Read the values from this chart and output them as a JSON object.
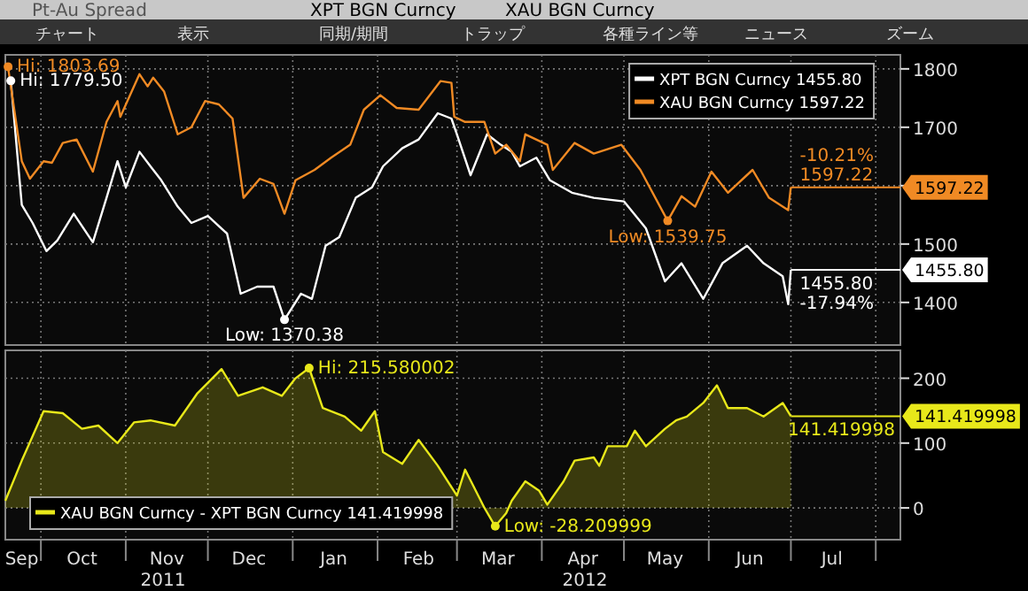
{
  "chart_data": [
    {
      "type": "line",
      "title": "Pt-Au Spread",
      "legend": "top right",
      "grid": true,
      "tick_labels": "y",
      "xlim": [
        "2011-09-18",
        "2012-08-10"
      ],
      "ylim": [
        1327,
        1824
      ],
      "xticks": [
        {
          "value": "2011-10-01",
          "label": null
        },
        {
          "value": "2011-11-01",
          "label": null
        },
        {
          "value": "2011-12-01",
          "label": null
        },
        {
          "value": "2012-01-01",
          "label": null
        },
        {
          "value": "2012-02-01",
          "label": null
        },
        {
          "value": "2012-03-01",
          "label": null
        },
        {
          "value": "2012-04-01",
          "label": null
        },
        {
          "value": "2012-05-01",
          "label": null
        },
        {
          "value": "2012-06-01",
          "label": null
        },
        {
          "value": "2012-07-01",
          "label": null
        },
        {
          "value": "2012-08-01",
          "label": null
        }
      ],
      "yticks": [
        1400,
        1500,
        {
          "value": 1600,
          "label": null
        },
        1700,
        1800
      ],
      "series": [
        {
          "name": "XPT BGN Curncy 1455.80",
          "color": "#ffffff",
          "x": [
            "2011-09-20",
            "2011-09-24",
            "2011-09-28",
            "2011-10-03",
            "2011-10-07",
            "2011-10-13",
            "2011-10-20",
            "2011-10-25",
            "2011-10-29",
            "2011-11-01",
            "2011-11-06",
            "2011-11-10",
            "2011-11-14",
            "2011-11-20",
            "2011-11-25",
            "2011-12-01",
            "2011-12-08",
            "2011-12-13",
            "2011-12-19",
            "2011-12-25",
            "2011-12-29",
            "2012-01-04",
            "2012-01-08",
            "2012-01-13",
            "2012-01-18",
            "2012-01-24",
            "2012-01-30",
            "2012-02-03",
            "2012-02-10",
            "2012-02-16",
            "2012-02-23",
            "2012-02-28",
            "2012-03-01",
            "2012-03-06",
            "2012-03-12",
            "2012-03-17",
            "2012-03-21",
            "2012-03-24",
            "2012-03-30",
            "2012-04-04",
            "2012-04-12",
            "2012-04-20",
            "2012-05-01",
            "2012-05-09",
            "2012-05-16",
            "2012-05-22",
            "2012-05-30",
            "2012-06-06",
            "2012-06-15",
            "2012-06-21",
            "2012-06-28",
            "2012-06-30",
            "2012-07-01"
          ],
          "values": [
            1779.5,
            1567,
            1536,
            1488,
            1506,
            1552,
            1503,
            1579,
            1642,
            1597,
            1658,
            1633,
            1609,
            1564,
            1536,
            1548,
            1518,
            1415,
            1427,
            1427,
            1370.38,
            1415,
            1406,
            1497,
            1512,
            1579,
            1597,
            1633,
            1664,
            1679,
            1724,
            1715,
            1688,
            1618,
            1688,
            1670,
            1658,
            1633,
            1648,
            1609,
            1588,
            1579,
            1573,
            1527,
            1436,
            1467,
            1406,
            1467,
            1497,
            1467,
            1445,
            1397,
            1455.8
          ]
        },
        {
          "name": "XAU BGN Curncy 1597.22",
          "color": "#f08a24",
          "x": [
            "2011-09-19",
            "2011-09-24",
            "2011-09-27",
            "2011-10-02",
            "2011-10-05",
            "2011-10-09",
            "2011-10-14",
            "2011-10-20",
            "2011-10-25",
            "2011-10-29",
            "2011-10-30",
            "2011-11-06",
            "2011-11-09",
            "2011-11-11",
            "2011-11-15",
            "2011-11-20",
            "2011-11-25",
            "2011-11-30",
            "2011-12-05",
            "2011-12-10",
            "2011-12-14",
            "2011-12-20",
            "2011-12-25",
            "2011-12-29",
            "2012-01-02",
            "2012-01-09",
            "2012-01-15",
            "2012-01-22",
            "2012-01-27",
            "2012-02-02",
            "2012-02-08",
            "2012-02-16",
            "2012-02-24",
            "2012-02-28",
            "2012-02-29",
            "2012-03-04",
            "2012-03-11",
            "2012-03-15",
            "2012-03-19",
            "2012-03-24",
            "2012-03-26",
            "2012-04-03",
            "2012-04-05",
            "2012-04-13",
            "2012-04-20",
            "2012-04-30",
            "2012-05-07",
            "2012-05-17",
            "2012-05-22",
            "2012-05-27",
            "2012-06-02",
            "2012-06-08",
            "2012-06-17",
            "2012-06-23",
            "2012-06-30",
            "2012-07-01"
          ],
          "values": [
            1803.69,
            1642,
            1612,
            1642,
            1639,
            1673,
            1679,
            1624,
            1709,
            1745,
            1718,
            1791,
            1770,
            1785,
            1761,
            1688,
            1700,
            1745,
            1739,
            1715,
            1579,
            1612,
            1603,
            1552,
            1609,
            1627,
            1648,
            1670,
            1730,
            1755,
            1733,
            1730,
            1779,
            1776,
            1718,
            1709,
            1709,
            1655,
            1670,
            1642,
            1688,
            1670,
            1627,
            1673,
            1655,
            1670,
            1627,
            1539.75,
            1582,
            1564,
            1624,
            1588,
            1627,
            1579,
            1558,
            1597.22
          ]
        }
      ],
      "ref_lines": [
        {
          "axis": "y",
          "value": 1597.22,
          "label": "1597.22",
          "color": "#f08a24"
        },
        {
          "axis": "y",
          "value": 1455.8,
          "label": "1455.80",
          "color": "#ffffff"
        }
      ],
      "annotations": [
        "XPT BGN Curncy",
        "XAU BGN Curncy",
        "チャート",
        "表示",
        "同期/期間",
        "トラップ",
        "各種ライン等",
        "ニュース",
        "ズーム",
        {
          "text": "Hi: 1803.69",
          "x": "2011-09-19",
          "y": 1803.69
        },
        {
          "text": "Hi: 1779.50",
          "x": "2011-09-20",
          "y": 1779.5
        },
        {
          "text": "Low: 1370.38",
          "x": "2011-12-29",
          "y": 1370.38
        },
        {
          "text": "Low: 1539.75",
          "x": "2012-05-17",
          "y": 1539.75
        },
        {
          "text": "-10.21%\n1597.22",
          "x": "2012-07-01",
          "y": 1597.22
        },
        {
          "text": "1455.80\n-17.94%",
          "x": "2012-07-01",
          "y": 1455.8
        }
      ]
    },
    {
      "type": "area",
      "legend": "bottom left",
      "grid": true,
      "xlim": [
        "2011-09-18",
        "2012-08-10"
      ],
      "ylim": [
        -49,
        243
      ],
      "xticks": [
        {
          "value": "2011-09-24",
          "label": "Sep"
        },
        {
          "value": "2011-10-01",
          "label": null
        },
        {
          "value": "2011-10-16",
          "label": "Oct"
        },
        {
          "value": "2011-11-01",
          "label": null
        },
        {
          "value": "2011-11-16",
          "label": "Nov"
        },
        {
          "value": "2011-12-01",
          "label": null
        },
        {
          "value": "2011-12-16",
          "label": "Dec"
        },
        {
          "value": "2012-01-01",
          "label": null
        },
        {
          "value": "2012-01-16",
          "label": "Jan"
        },
        {
          "value": "2012-02-01",
          "label": null
        },
        {
          "value": "2012-02-16",
          "label": "Feb"
        },
        {
          "value": "2012-03-01",
          "label": null
        },
        {
          "value": "2012-03-16",
          "label": "Mar"
        },
        {
          "value": "2012-04-01",
          "label": null
        },
        {
          "value": "2012-04-16",
          "label": "Apr"
        },
        {
          "value": "2012-05-01",
          "label": null
        },
        {
          "value": "2012-05-16",
          "label": "May"
        },
        {
          "value": "2012-06-01",
          "label": null
        },
        {
          "value": "2012-06-16",
          "label": "Jun"
        },
        {
          "value": "2012-07-01",
          "label": null
        },
        {
          "value": "2012-07-16",
          "label": "Jul"
        },
        {
          "value": "2012-08-01",
          "label": null
        }
      ],
      "yticks": [
        0,
        100,
        200
      ],
      "series": [
        {
          "name": "XAU BGN Curncy - XPT BGN Curncy 141.419998",
          "color": "#e8e81a",
          "x": [
            "2011-09-18",
            "2011-09-24",
            "2011-10-02",
            "2011-10-09",
            "2011-10-16",
            "2011-10-22",
            "2011-10-29",
            "2011-11-04",
            "2011-11-10",
            "2011-11-19",
            "2011-11-27",
            "2011-12-06",
            "2011-12-12",
            "2011-12-21",
            "2011-12-28",
            "2012-01-02",
            "2012-01-07",
            "2012-01-12",
            "2012-01-20",
            "2012-01-26",
            "2012-01-31",
            "2012-02-03",
            "2012-02-10",
            "2012-02-16",
            "2012-02-23",
            "2012-03-01",
            "2012-03-04",
            "2012-03-11",
            "2012-03-15",
            "2012-03-19",
            "2012-03-21",
            "2012-03-26",
            "2012-03-31",
            "2012-04-03",
            "2012-04-09",
            "2012-04-13",
            "2012-04-20",
            "2012-04-22",
            "2012-04-25",
            "2012-05-02",
            "2012-05-05",
            "2012-05-09",
            "2012-05-16",
            "2012-05-20",
            "2012-05-24",
            "2012-05-30",
            "2012-06-04",
            "2012-06-08",
            "2012-06-15",
            "2012-06-21",
            "2012-06-28",
            "2012-07-01"
          ],
          "values": [
            11,
            73,
            149,
            146,
            122,
            127,
            100,
            132,
            135,
            127,
            176,
            214,
            173,
            186,
            173,
            200,
            215.580002,
            154,
            141,
            119,
            149,
            86,
            68,
            105,
            65,
            19,
            59,
            0,
            -28.209999,
            -8,
            11,
            41,
            27,
            5,
            41,
            73,
            78,
            65,
            95,
            95,
            119,
            95,
            122,
            135,
            141,
            162,
            189,
            154,
            154,
            141,
            162,
            141.419998
          ]
        }
      ],
      "ref_lines": [
        {
          "axis": "y",
          "value": 141.419998,
          "label": "141.419998",
          "color": "#e8e81a"
        }
      ],
      "annotations": [
        {
          "text": "Hi: 215.580002",
          "x": "2012-01-07",
          "y": 215.580002
        },
        {
          "text": "Low: -28.209999",
          "x": "2012-03-15",
          "y": -28.209999
        },
        {
          "text": "141.419998",
          "x": "2012-07-01",
          "y": 141.419998
        },
        "2011",
        "2012"
      ]
    }
  ]
}
